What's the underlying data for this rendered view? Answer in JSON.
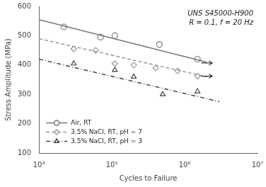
{
  "chart_data": {
    "type": "line",
    "annotation": "UNS S45000-H900\nR = 0.1, f = 20 Hz",
    "xlabel": "Cycles to Failure",
    "ylabel": "Stress Amplitude (MPa)",
    "log": "x",
    "xlim": [
      10000,
      10000000
    ],
    "xticks": [
      {
        "value": 10000,
        "label": "10⁴"
      },
      {
        "value": 100000,
        "label": "10⁵"
      },
      {
        "value": 1000000,
        "label": "10⁶"
      },
      {
        "value": 10000000,
        "label": "10⁷"
      }
    ],
    "ylim": [
      100,
      600
    ],
    "yticks": [
      100,
      200,
      300,
      400,
      500,
      600
    ],
    "grid": false,
    "legend": "lower left",
    "series": [
      {
        "name": "Air, RT",
        "color": "#777777",
        "marker": "circle",
        "line_style": "solid",
        "x": [
          22000,
          70000,
          110000,
          450000,
          1500000
        ],
        "values": [
          530,
          495,
          500,
          470,
          420
        ],
        "fit_x": [
          10000,
          2000000
        ],
        "fit_values": [
          555,
          410
        ]
      },
      {
        "name": "3.5% NaCl, RT, pH = 7",
        "color": "#999999",
        "marker": "diamond",
        "line_style": "dashed",
        "x": [
          30000,
          60000,
          110000,
          200000,
          400000,
          800000,
          1500000
        ],
        "values": [
          455,
          450,
          405,
          400,
          390,
          380,
          362
        ],
        "fit_x": [
          10000,
          2000000
        ],
        "fit_values": [
          490,
          360
        ]
      },
      {
        "name": "3.5% NaCl, RT, pH = 3",
        "color": "#444444",
        "marker": "triangle",
        "line_style": "dashdot",
        "x": [
          30000,
          110000,
          200000,
          500000,
          1500000
        ],
        "values": [
          405,
          383,
          360,
          300,
          310
        ],
        "fit_x": [
          10000,
          3000000
        ],
        "fit_values": [
          420,
          275
        ]
      }
    ],
    "arrows": [
      {
        "x_start": 1700000,
        "x_end": 2400000,
        "y": 407
      },
      {
        "x_start": 1700000,
        "x_end": 2400000,
        "y": 362
      }
    ]
  }
}
